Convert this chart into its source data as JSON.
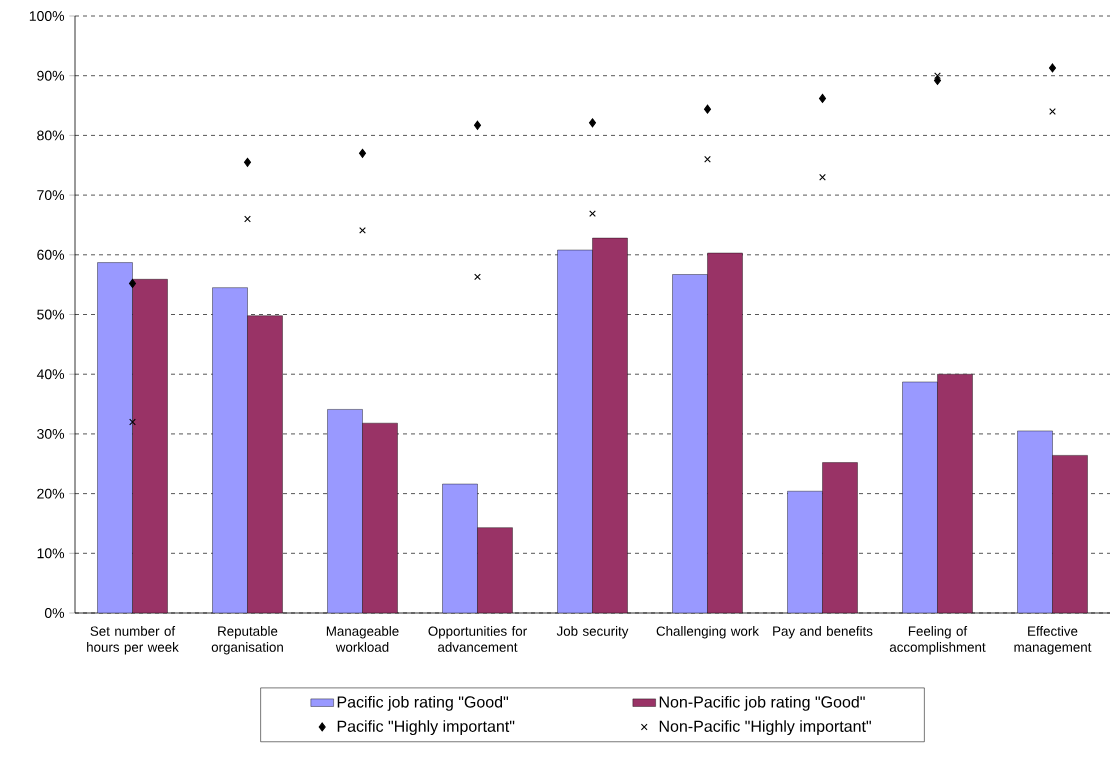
{
  "chart_data": {
    "type": "bar",
    "categories": [
      "Set number of hours per week",
      "Reputable organisation",
      "Manageable workload",
      "Opportunities for advancement",
      "Job security",
      "Challenging work",
      "Pay and benefits",
      "Feeling of accomplishment",
      "Effective management"
    ],
    "series": [
      {
        "name": "Pacific job rating \"Good\"",
        "color": "#9999ff",
        "values": [
          58.7,
          54.5,
          34.1,
          21.6,
          60.8,
          56.7,
          20.4,
          38.7,
          30.5
        ]
      },
      {
        "name": "Non-Pacific job rating \"Good\"",
        "color": "#993366",
        "values": [
          55.9,
          49.8,
          31.8,
          14.3,
          62.8,
          60.3,
          25.2,
          40.0,
          26.4
        ]
      },
      {
        "name": "Pacific \"Highly important\"",
        "type": "scatter",
        "marker": "diamond",
        "color": "#000000",
        "values": [
          55.2,
          75.5,
          77.0,
          81.7,
          82.1,
          84.4,
          86.2,
          89.2,
          91.3
        ]
      },
      {
        "name": "Non-Pacific \"Highly important\"",
        "type": "scatter",
        "marker": "cross",
        "color": "#000000",
        "values": [
          32.0,
          66.0,
          64.1,
          56.3,
          66.9,
          76.0,
          73.0,
          90.0,
          84.0
        ]
      }
    ],
    "ylim": [
      0,
      100
    ],
    "yticks": [
      {
        "value": 0,
        "label": "0%"
      },
      {
        "value": 10,
        "label": "10%"
      },
      {
        "value": 20,
        "label": "20%"
      },
      {
        "value": 30,
        "label": "30%"
      },
      {
        "value": 40,
        "label": "40%"
      },
      {
        "value": 50,
        "label": "50%"
      },
      {
        "value": 60,
        "label": "60%"
      },
      {
        "value": 70,
        "label": "70%"
      },
      {
        "value": 80,
        "label": "80%"
      },
      {
        "value": 90,
        "label": "90%"
      },
      {
        "value": 100,
        "label": "100%"
      }
    ],
    "grid": "y",
    "legend": "bottom"
  }
}
